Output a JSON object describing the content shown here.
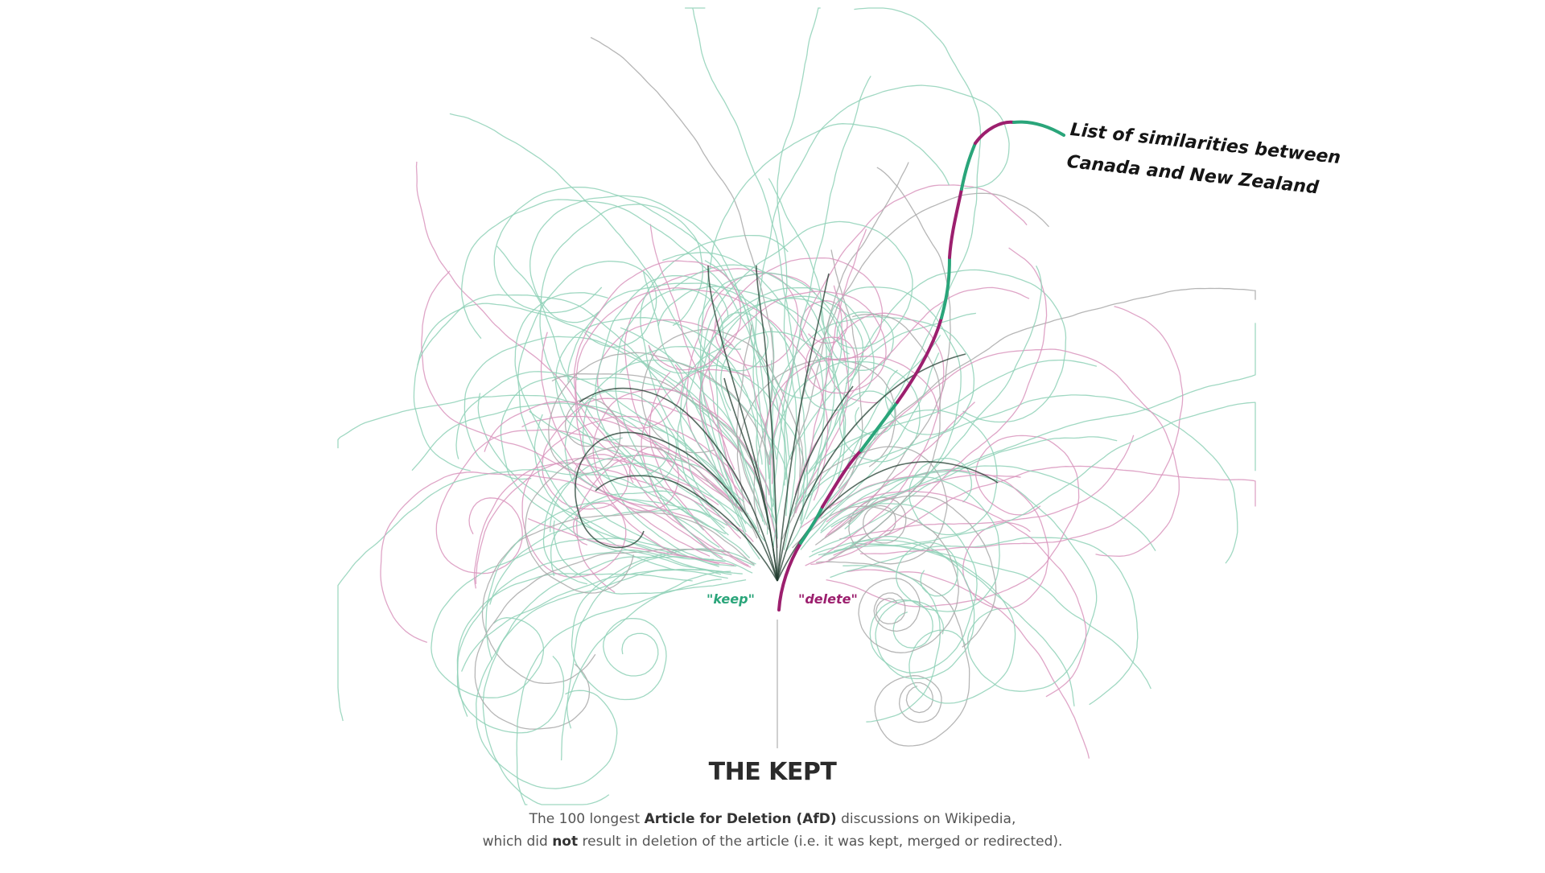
{
  "title": "THE KEPT",
  "caption": {
    "line1": {
      "pre": "The 100 longest ",
      "bold": "Article for Deletion (AfD)",
      "post": " discussions on Wikipedia,"
    },
    "line2": {
      "pre": "which did ",
      "bold": "not",
      "post": " result in deletion of the  article (i.e. it was kept, merged or redirected)."
    }
  },
  "labels": {
    "keep": "\"keep\"",
    "delete": "\"delete\""
  },
  "highlight": {
    "line1": "List of similarities between",
    "line2": "Canada and New Zealand"
  },
  "colors": {
    "keep": "#2aa57a",
    "delete": "#9c1f6e",
    "light_keep": "#8fd1b7",
    "light_delete": "#d995bd",
    "trunk": "#1f3b2e",
    "pointer": "#bbbbbb"
  }
}
